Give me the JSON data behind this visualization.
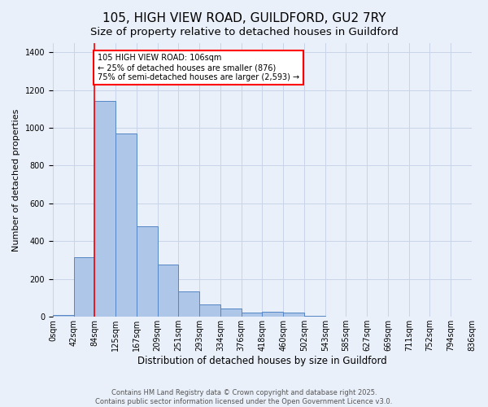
{
  "title": "105, HIGH VIEW ROAD, GUILDFORD, GU2 7RY",
  "subtitle": "Size of property relative to detached houses in Guildford",
  "xlabel": "Distribution of detached houses by size in Guildford",
  "ylabel": "Number of detached properties",
  "bar_values": [
    10,
    315,
    1140,
    970,
    480,
    278,
    133,
    65,
    44,
    22,
    27,
    22,
    5,
    2,
    0,
    0,
    0,
    0,
    0,
    0
  ],
  "categories": [
    "0sqm",
    "42sqm",
    "84sqm",
    "125sqm",
    "167sqm",
    "209sqm",
    "251sqm",
    "293sqm",
    "334sqm",
    "376sqm",
    "418sqm",
    "460sqm",
    "502sqm",
    "543sqm",
    "585sqm",
    "627sqm",
    "669sqm",
    "711sqm",
    "752sqm",
    "794sqm",
    "836sqm"
  ],
  "bar_color": "#aec6e8",
  "bar_edge_color": "#5585c5",
  "grid_color": "#c8d4e8",
  "background_color": "#eaf0fa",
  "red_line_x": 1.5,
  "annotation_text": "105 HIGH VIEW ROAD: 106sqm\n← 25% of detached houses are smaller (876)\n75% of semi-detached houses are larger (2,593) →",
  "annotation_box_color": "white",
  "annotation_box_edge_color": "red",
  "ylim": [
    0,
    1450
  ],
  "yticks": [
    0,
    200,
    400,
    600,
    800,
    1000,
    1200,
    1400
  ],
  "footer_text": "Contains HM Land Registry data © Crown copyright and database right 2025.\nContains public sector information licensed under the Open Government Licence v3.0.",
  "title_fontsize": 11,
  "subtitle_fontsize": 9.5,
  "xlabel_fontsize": 8.5,
  "ylabel_fontsize": 8,
  "tick_fontsize": 7,
  "annotation_fontsize": 7,
  "footer_fontsize": 6
}
